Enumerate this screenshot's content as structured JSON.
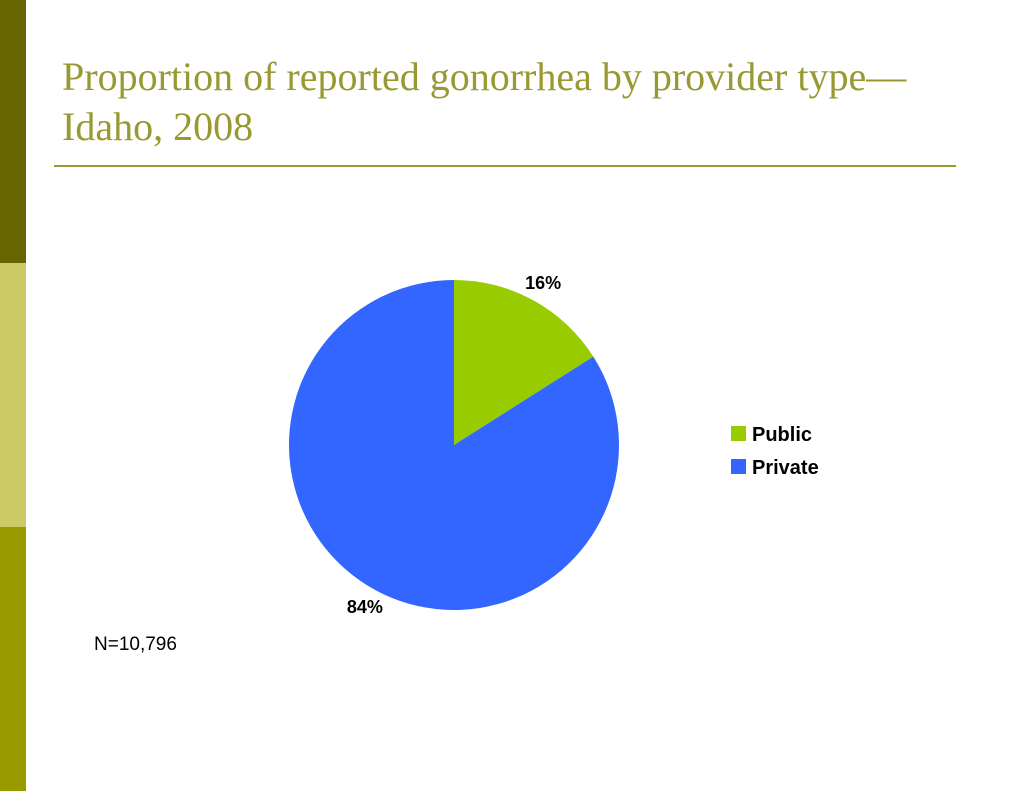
{
  "slide": {
    "title": "Proportion of reported gonorrhea by provider type—Idaho, 2008",
    "note": "N=10,796"
  },
  "colors": {
    "sidebar_dark": "#666600",
    "sidebar_light": "#cccc66",
    "sidebar_mid": "#999900",
    "title": "#999933",
    "public": "#99cc00",
    "private": "#3366ff"
  },
  "chart_data": {
    "type": "pie",
    "categories": [
      "Public",
      "Private"
    ],
    "values": [
      16,
      84
    ],
    "data_labels": [
      "16%",
      "84%"
    ],
    "colors": [
      "#99cc00",
      "#3366ff"
    ],
    "legend_position": "right",
    "start_angle": "12 o'clock, clockwise"
  }
}
